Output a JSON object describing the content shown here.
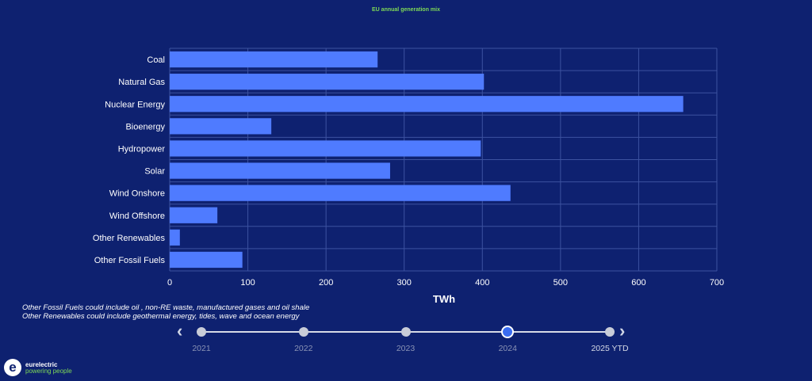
{
  "chart_data": {
    "type": "bar",
    "orientation": "horizontal",
    "title": "EU annual generation mix",
    "categories": [
      "Coal",
      "Natural Gas",
      "Nuclear Energy",
      "Bioenergy",
      "Hydropower",
      "Solar",
      "Wind Onshore",
      "Wind Offshore",
      "Other Renewables",
      "Other Fossil Fuels"
    ],
    "series": [
      {
        "values": [
          266,
          402,
          657,
          130,
          398,
          282,
          436,
          61,
          13,
          93
        ]
      }
    ],
    "xlabel": "TWh",
    "xlim": [
      0,
      700
    ],
    "xticks": [
      0,
      100,
      200,
      300,
      400,
      500,
      600,
      700
    ],
    "grid": true,
    "bar_color": "#4f7bff"
  },
  "notes": [
    "Other Fossil Fuels could include oil , non-RE waste, manufactured gases and oil shale",
    "Other Renewables could include geothermal energy, tides, wave and ocean energy"
  ],
  "timeline": {
    "years": [
      "2021",
      "2022",
      "2023",
      "2024",
      "2025 YTD"
    ],
    "selected": "2024",
    "prev_icon": "chevron-left-icon",
    "next_icon": "chevron-right-icon"
  },
  "logo": {
    "mark": "e",
    "name": "eurelectric",
    "tagline": "powering people"
  }
}
